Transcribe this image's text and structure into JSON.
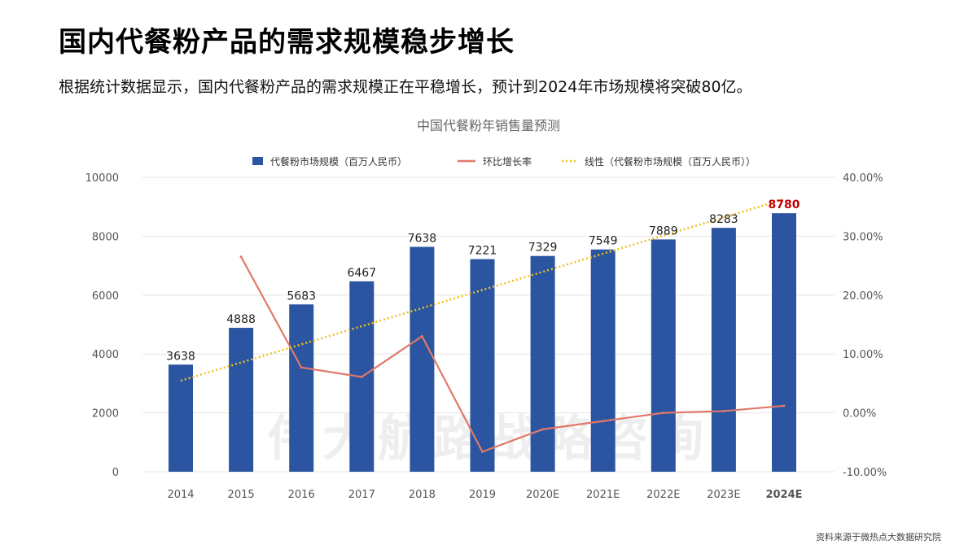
{
  "header": {
    "title": "国内代餐粉产品的需求规模稳步增长",
    "subtitle": "根据统计数据显示，国内代餐粉产品的需求规模正在平稳增长，预计到2024年市场规模将突破80亿。"
  },
  "source": "资料来源于微热点大数据研究院",
  "watermark": "伟大航路战略咨询",
  "chart_data": {
    "type": "bar",
    "title": "中国代餐粉年销售量预测",
    "categories": [
      "2014",
      "2015",
      "2016",
      "2017",
      "2018",
      "2019",
      "2020E",
      "2021E",
      "2022E",
      "2023E",
      "2024E"
    ],
    "highlight_category": "2024E",
    "series": [
      {
        "name": "代餐粉市场规模（百万人民币）",
        "type": "bar",
        "axis": "left",
        "color": "#2b55a0",
        "values": [
          3638,
          4888,
          5683,
          6467,
          7638,
          7221,
          7329,
          7549,
          7889,
          8283,
          8780
        ],
        "labels": [
          "3638",
          "4888",
          "5683",
          "6467",
          "7638",
          "7221",
          "7329",
          "7549",
          "7889",
          "8283",
          "8780"
        ]
      },
      {
        "name": "环比增长率",
        "type": "line",
        "axis": "right",
        "color": "#e0786a",
        "values": [
          null,
          26.5,
          7.7,
          6.1,
          13.0,
          -6.6,
          -2.8,
          -1.4,
          0.0,
          0.3,
          1.2
        ]
      },
      {
        "name": "线性（代餐粉市场规模（百万人民币））",
        "type": "trendline",
        "axis": "left",
        "color": "#f0c020",
        "values": [
          3094,
          3710,
          4326,
          4942,
          5558,
          6174,
          6790,
          7406,
          8022,
          8638,
          9254
        ]
      }
    ],
    "y_left": {
      "range": [
        0,
        10000
      ],
      "ticks": [
        "0",
        "2000",
        "4000",
        "6000",
        "8000",
        "10000"
      ]
    },
    "y_right": {
      "range": [
        -10,
        40
      ],
      "ticks": [
        "-10.00%",
        "0.00%",
        "10.00%",
        "20.00%",
        "30.00%",
        "40.00%"
      ]
    },
    "grid": true,
    "legend": "top",
    "highlight_color": "#c00000"
  }
}
